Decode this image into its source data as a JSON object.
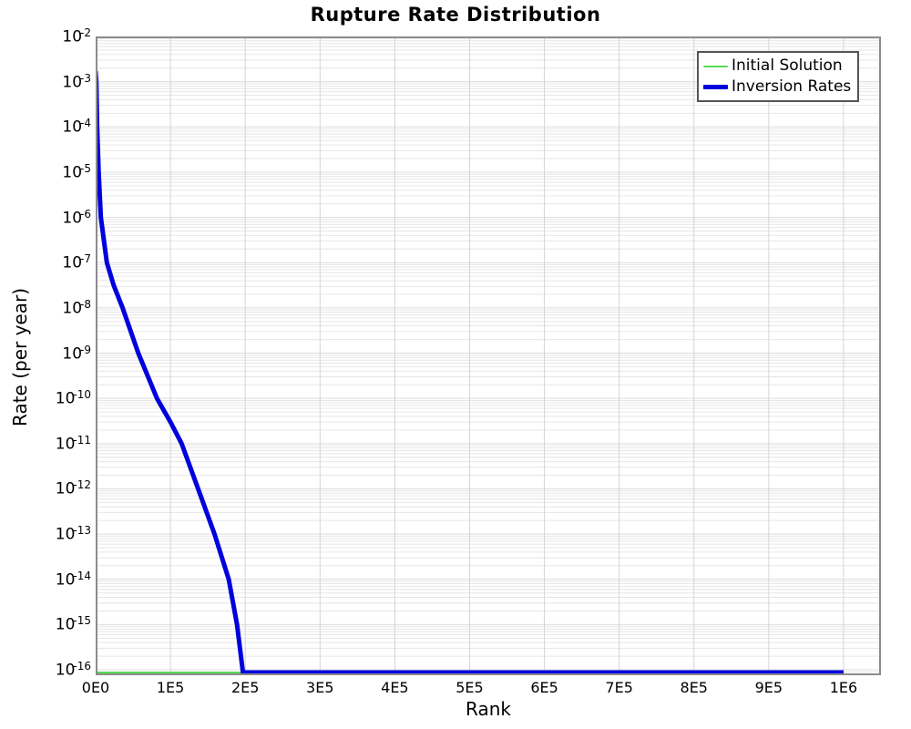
{
  "title": "Rupture Rate Distribution",
  "axes": {
    "x_label": "Rank",
    "y_label": "Rate (per year)",
    "x_tick_labels": [
      "0E0",
      "1E5",
      "2E5",
      "3E5",
      "4E5",
      "5E5",
      "6E5",
      "7E5",
      "8E5",
      "9E5",
      "1E6"
    ],
    "x_tick_values": [
      0,
      100000,
      200000,
      300000,
      400000,
      500000,
      600000,
      700000,
      800000,
      900000,
      1000000
    ],
    "y_tick_exponents": [
      -2,
      -3,
      -4,
      -5,
      -6,
      -7,
      -8,
      -9,
      -10,
      -11,
      -12,
      -13,
      -14,
      -15,
      -16
    ],
    "y_tick_base": "10"
  },
  "legend": {
    "position": "top-right",
    "entries": [
      {
        "label": "Initial Solution",
        "color": "#55DD55",
        "thickness": 2
      },
      {
        "label": "Inversion Rates",
        "color": "#0000DD",
        "thickness": 5
      }
    ]
  },
  "colors": {
    "grid_minor": "#e6e6e6",
    "grid_major": "#dcdcdc",
    "grid_vertical": "#d4d4d4",
    "plot_border": "#8c8c8c",
    "initial_solution": "#55DD55",
    "inversion_rates": "#0000DD"
  },
  "chart_data": {
    "type": "line",
    "title": "Rupture Rate Distribution",
    "xlabel": "Rank",
    "ylabel": "Rate (per year)",
    "xlim": [
      0,
      1050000
    ],
    "ylim": [
      1e-16,
      0.01
    ],
    "y_scale": "log",
    "grid": true,
    "legend_position": "top-right",
    "series": [
      {
        "name": "Initial Solution",
        "color": "#55DD55",
        "width": 2,
        "points": [
          [
            0,
            1e-16
          ],
          [
            1000000,
            1e-16
          ]
        ]
      },
      {
        "name": "Inversion Rates",
        "color": "#0000DD",
        "width": 5,
        "points": [
          [
            0,
            0.0017
          ],
          [
            800,
            0.001
          ],
          [
            2000,
            0.0001
          ],
          [
            4000,
            1e-05
          ],
          [
            7000,
            1e-06
          ],
          [
            15000,
            1e-07
          ],
          [
            24000,
            3.2e-08
          ],
          [
            36000,
            1e-08
          ],
          [
            57000,
            1e-09
          ],
          [
            82000,
            1e-10
          ],
          [
            100000,
            3e-11
          ],
          [
            115000,
            1e-11
          ],
          [
            137000,
            1e-12
          ],
          [
            159000,
            1e-13
          ],
          [
            178000,
            1e-14
          ],
          [
            189000,
            1e-15
          ],
          [
            197000,
            1e-16
          ],
          [
            1000000,
            1e-16
          ]
        ]
      }
    ]
  }
}
